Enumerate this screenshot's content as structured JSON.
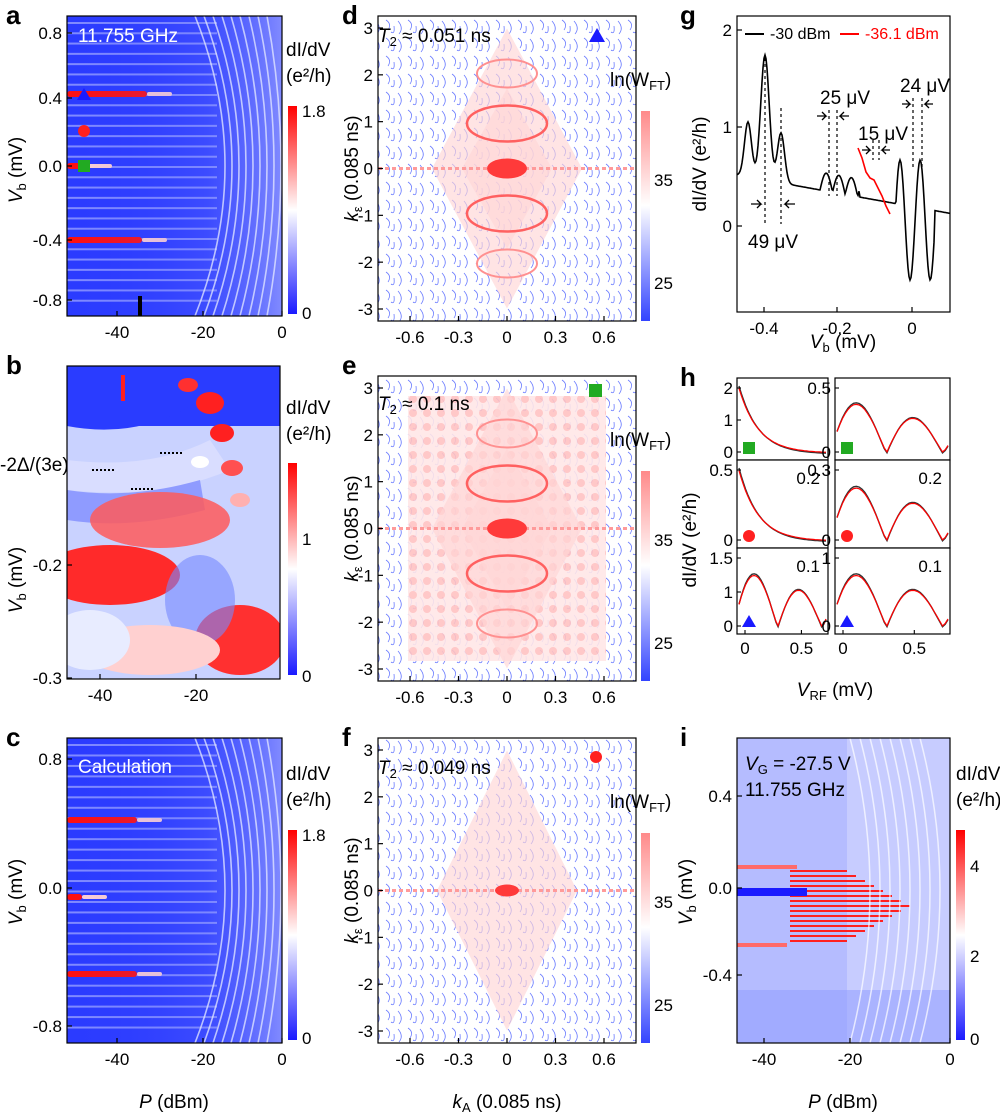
{
  "figure": {
    "panel_labels": [
      "a",
      "b",
      "c",
      "d",
      "e",
      "f",
      "g",
      "h",
      "i"
    ],
    "colors": {
      "cmap_low": "#1a1aff",
      "cmap_mid": "#ffffff",
      "cmap_high": "#ff0000",
      "pale_low": "#5a6cff",
      "pale_high": "#ff8a8a"
    }
  },
  "panel_a": {
    "annotation": "11.755 GHz",
    "yticks": [
      "0.8",
      "0.4",
      "0.0",
      "-0.4",
      "-0.8"
    ],
    "xticks": [
      "-40",
      "-20",
      "0"
    ],
    "ylabel_main": "V",
    "ylabel_sub": "b",
    "ylabel_unit": " (mV)",
    "cbar_title": "dI/dV",
    "cbar_unit": "(e²/h)",
    "cbar_ticks": [
      "1.8",
      "0"
    ]
  },
  "panel_b": {
    "annotation": "-2Δ/(3e)",
    "yticks": [
      "-0.2",
      "-0.3"
    ],
    "xticks": [
      "-40",
      "-20"
    ],
    "ylabel_main": "V",
    "ylabel_sub": "b",
    "ylabel_unit": " (mV)",
    "cbar_title": "dI/dV",
    "cbar_unit": "(e²/h)",
    "cbar_ticks": [
      "1",
      "0"
    ]
  },
  "panel_c": {
    "annotation": "Calculation",
    "yticks": [
      "0.8",
      "0.0",
      "-0.8"
    ],
    "xticks": [
      "-40",
      "-20",
      "0"
    ],
    "ylabel_main": "V",
    "ylabel_sub": "b",
    "ylabel_unit": " (mV)",
    "xlabel_main": "P",
    "xlabel_unit": " (dBm)",
    "cbar_title": "dI/dV",
    "cbar_unit": "(e²/h)",
    "cbar_ticks": [
      "1.8",
      "0"
    ]
  },
  "panel_d": {
    "annotation_main": "T",
    "annotation_sub": "2",
    "annotation_val": " ≈ 0.051 ns",
    "yticks": [
      "3",
      "2",
      "1",
      "0",
      "-1",
      "-2",
      "-3"
    ],
    "xticks": [
      "-0.6",
      "-0.3",
      "0",
      "0.3",
      "0.6"
    ],
    "ylabel_main": "k",
    "ylabel_sub": "ε",
    "ylabel_unit": " (0.085 ns)",
    "cbar_title": "ln(W",
    "cbar_sub": "FT",
    "cbar_close": ")",
    "cbar_ticks": [
      "35",
      "25"
    ]
  },
  "panel_e": {
    "annotation_main": "T",
    "annotation_sub": "2",
    "annotation_val": " ≈ 0.1 ns",
    "yticks": [
      "3",
      "2",
      "1",
      "0",
      "-1",
      "-2",
      "-3"
    ],
    "xticks": [
      "-0.6",
      "-0.3",
      "0",
      "0.3",
      "0.6"
    ],
    "ylabel_main": "k",
    "ylabel_sub": "ε",
    "ylabel_unit": " (0.085 ns)",
    "cbar_title": "ln(W",
    "cbar_sub": "FT",
    "cbar_close": ")",
    "cbar_ticks": [
      "35",
      "25"
    ]
  },
  "panel_f": {
    "annotation_main": "T",
    "annotation_sub": "2",
    "annotation_val": " ≈ 0.049 ns",
    "yticks": [
      "3",
      "2",
      "1",
      "0",
      "-1",
      "-2",
      "-3"
    ],
    "xticks": [
      "-0.6",
      "-0.3",
      "0",
      "0.3",
      "0.6"
    ],
    "ylabel_main": "k",
    "ylabel_sub": "ε",
    "ylabel_unit": " (0.085 ns)",
    "xlabel_main": "k",
    "xlabel_sub": "A",
    "xlabel_unit": " (0.085 ns)",
    "cbar_title": "ln(W",
    "cbar_sub": "FT",
    "cbar_close": ")",
    "cbar_ticks": [
      "35",
      "25"
    ]
  },
  "panel_g": {
    "legend": [
      "-30 dBm",
      "-36.1 dBm"
    ],
    "legend_colors": [
      "#000000",
      "#ff0000"
    ],
    "spacings": [
      "49 μV",
      "25 μV",
      "15 μV",
      "24 μV"
    ],
    "yticks": [
      "2",
      "1",
      "0"
    ],
    "xticks": [
      "-0.4",
      "-0.2",
      "0"
    ],
    "ylabel": "dI/dV (e²/h)",
    "xlabel_main": "V",
    "xlabel_sub": "b",
    "xlabel_unit": " (mV)"
  },
  "panel_h": {
    "left_col_yticks": [
      [
        "2",
        "1",
        "0"
      ],
      [
        "0.5",
        "0"
      ],
      [
        "1.5",
        "1",
        "0"
      ]
    ],
    "right_col_yticks": [
      [
        "0.5",
        "0"
      ],
      [
        "0.3",
        "0"
      ],
      [
        "1",
        "0"
      ]
    ],
    "row_labels": [
      "0.2",
      "0.1"
    ],
    "xticks": [
      "0",
      "0.5"
    ],
    "ylabel": "dI/dV (e²/h)",
    "xlabel_main": "V",
    "xlabel_sub": "RF",
    "xlabel_unit": " (mV)",
    "fit_colors": {
      "data": "#333333",
      "fit": "#ff0000"
    }
  },
  "panel_i": {
    "annotation_line1_main": "V",
    "annotation_line1_sub": "G",
    "annotation_line1_val": " = -27.5 V",
    "annotation_line2": "11.755 GHz",
    "yticks": [
      "0.4",
      "0.0",
      "-0.4"
    ],
    "xticks": [
      "-40",
      "-20",
      "0"
    ],
    "ylabel_main": "V",
    "ylabel_sub": "b",
    "ylabel_unit": " (mV)",
    "xlabel_main": "P",
    "xlabel_unit": " (dBm)",
    "cbar_title": "dI/dV",
    "cbar_unit": "(e²/h)",
    "cbar_ticks": [
      "4",
      "2",
      "0"
    ]
  }
}
